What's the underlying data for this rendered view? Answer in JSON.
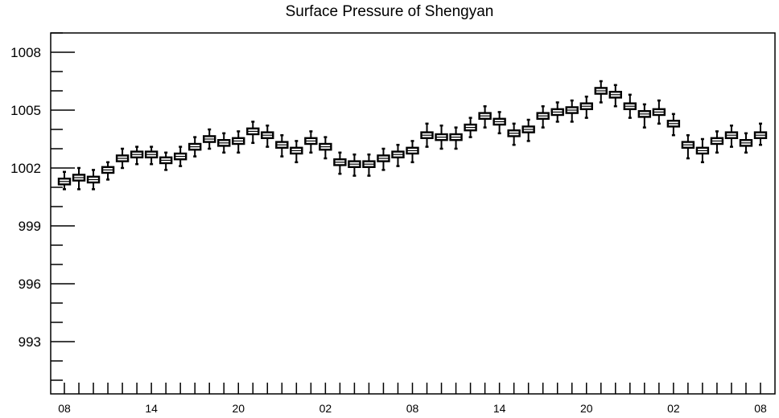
{
  "chart_data": {
    "type": "box",
    "title": "Surface Pressure of Shengyan",
    "xlabel": "",
    "ylabel": "",
    "ylim": [
      990,
      1009
    ],
    "y_ticks": [
      "993",
      "996",
      "999",
      "1002",
      "1005",
      "1008"
    ],
    "x_tick_labels": [
      "08",
      "14",
      "20",
      "02",
      "08",
      "14",
      "20",
      "02",
      "08"
    ],
    "x_label_steps": [
      0,
      6,
      12,
      18,
      24,
      30,
      36,
      42,
      48
    ],
    "boxes": [
      {
        "step": 0,
        "median": 1001.3,
        "q1": 1001.15,
        "q3": 1001.45,
        "low": 1000.9,
        "high": 1001.8
      },
      {
        "step": 1,
        "median": 1001.5,
        "q1": 1001.35,
        "q3": 1001.65,
        "low": 1000.9,
        "high": 1002.0
      },
      {
        "step": 2,
        "median": 1001.4,
        "q1": 1001.25,
        "q3": 1001.55,
        "low": 1000.9,
        "high": 1001.9
      },
      {
        "step": 3,
        "median": 1001.9,
        "q1": 1001.75,
        "q3": 1002.05,
        "low": 1001.4,
        "high": 1002.3
      },
      {
        "step": 4,
        "median": 1002.5,
        "q1": 1002.35,
        "q3": 1002.65,
        "low": 1002.0,
        "high": 1003.0
      },
      {
        "step": 5,
        "median": 1002.7,
        "q1": 1002.55,
        "q3": 1002.85,
        "low": 1002.2,
        "high": 1003.1
      },
      {
        "step": 6,
        "median": 1002.7,
        "q1": 1002.55,
        "q3": 1002.85,
        "low": 1002.2,
        "high": 1003.1
      },
      {
        "step": 7,
        "median": 1002.4,
        "q1": 1002.25,
        "q3": 1002.55,
        "low": 1001.9,
        "high": 1002.8
      },
      {
        "step": 8,
        "median": 1002.6,
        "q1": 1002.45,
        "q3": 1002.75,
        "low": 1002.1,
        "high": 1003.1
      },
      {
        "step": 9,
        "median": 1003.1,
        "q1": 1002.95,
        "q3": 1003.25,
        "low": 1002.6,
        "high": 1003.6
      },
      {
        "step": 10,
        "median": 1003.5,
        "q1": 1003.35,
        "q3": 1003.65,
        "low": 1003.0,
        "high": 1004.0
      },
      {
        "step": 11,
        "median": 1003.3,
        "q1": 1003.15,
        "q3": 1003.45,
        "low": 1002.8,
        "high": 1003.8
      },
      {
        "step": 12,
        "median": 1003.4,
        "q1": 1003.25,
        "q3": 1003.55,
        "low": 1002.8,
        "high": 1003.9
      },
      {
        "step": 13,
        "median": 1003.9,
        "q1": 1003.75,
        "q3": 1004.05,
        "low": 1003.3,
        "high": 1004.4
      },
      {
        "step": 14,
        "median": 1003.7,
        "q1": 1003.55,
        "q3": 1003.85,
        "low": 1003.1,
        "high": 1004.2
      },
      {
        "step": 15,
        "median": 1003.2,
        "q1": 1003.05,
        "q3": 1003.35,
        "low": 1002.6,
        "high": 1003.7
      },
      {
        "step": 16,
        "median": 1002.9,
        "q1": 1002.75,
        "q3": 1003.05,
        "low": 1002.3,
        "high": 1003.4
      },
      {
        "step": 17,
        "median": 1003.4,
        "q1": 1003.25,
        "q3": 1003.55,
        "low": 1002.8,
        "high": 1003.9
      },
      {
        "step": 18,
        "median": 1003.1,
        "q1": 1002.95,
        "q3": 1003.25,
        "low": 1002.5,
        "high": 1003.6
      },
      {
        "step": 19,
        "median": 1002.3,
        "q1": 1002.15,
        "q3": 1002.45,
        "low": 1001.7,
        "high": 1002.8
      },
      {
        "step": 20,
        "median": 1002.2,
        "q1": 1002.05,
        "q3": 1002.35,
        "low": 1001.6,
        "high": 1002.7
      },
      {
        "step": 21,
        "median": 1002.2,
        "q1": 1002.05,
        "q3": 1002.35,
        "low": 1001.6,
        "high": 1002.7
      },
      {
        "step": 22,
        "median": 1002.5,
        "q1": 1002.35,
        "q3": 1002.65,
        "low": 1001.9,
        "high": 1003.0
      },
      {
        "step": 23,
        "median": 1002.7,
        "q1": 1002.55,
        "q3": 1002.85,
        "low": 1002.1,
        "high": 1003.2
      },
      {
        "step": 24,
        "median": 1002.9,
        "q1": 1002.75,
        "q3": 1003.05,
        "low": 1002.3,
        "high": 1003.4
      },
      {
        "step": 25,
        "median": 1003.7,
        "q1": 1003.55,
        "q3": 1003.85,
        "low": 1003.1,
        "high": 1004.3
      },
      {
        "step": 26,
        "median": 1003.6,
        "q1": 1003.45,
        "q3": 1003.75,
        "low": 1003.0,
        "high": 1004.2
      },
      {
        "step": 27,
        "median": 1003.6,
        "q1": 1003.45,
        "q3": 1003.75,
        "low": 1003.0,
        "high": 1004.1
      },
      {
        "step": 28,
        "median": 1004.1,
        "q1": 1003.95,
        "q3": 1004.25,
        "low": 1003.6,
        "high": 1004.6
      },
      {
        "step": 29,
        "median": 1004.7,
        "q1": 1004.55,
        "q3": 1004.85,
        "low": 1004.1,
        "high": 1005.2
      },
      {
        "step": 30,
        "median": 1004.4,
        "q1": 1004.25,
        "q3": 1004.55,
        "low": 1003.8,
        "high": 1004.9
      },
      {
        "step": 31,
        "median": 1003.8,
        "q1": 1003.65,
        "q3": 1003.95,
        "low": 1003.2,
        "high": 1004.3
      },
      {
        "step": 32,
        "median": 1004.0,
        "q1": 1003.85,
        "q3": 1004.15,
        "low": 1003.4,
        "high": 1004.5
      },
      {
        "step": 33,
        "median": 1004.7,
        "q1": 1004.55,
        "q3": 1004.85,
        "low": 1004.1,
        "high": 1005.2
      },
      {
        "step": 34,
        "median": 1004.9,
        "q1": 1004.75,
        "q3": 1005.05,
        "low": 1004.4,
        "high": 1005.4
      },
      {
        "step": 35,
        "median": 1005.0,
        "q1": 1004.85,
        "q3": 1005.15,
        "low": 1004.4,
        "high": 1005.5
      },
      {
        "step": 36,
        "median": 1005.2,
        "q1": 1005.05,
        "q3": 1005.35,
        "low": 1004.6,
        "high": 1005.7
      },
      {
        "step": 37,
        "median": 1006.0,
        "q1": 1005.85,
        "q3": 1006.15,
        "low": 1005.4,
        "high": 1006.5
      },
      {
        "step": 38,
        "median": 1005.8,
        "q1": 1005.65,
        "q3": 1005.95,
        "low": 1005.2,
        "high": 1006.3
      },
      {
        "step": 39,
        "median": 1005.2,
        "q1": 1005.05,
        "q3": 1005.35,
        "low": 1004.6,
        "high": 1005.8
      },
      {
        "step": 40,
        "median": 1004.8,
        "q1": 1004.65,
        "q3": 1004.95,
        "low": 1004.1,
        "high": 1005.3
      },
      {
        "step": 41,
        "median": 1004.9,
        "q1": 1004.75,
        "q3": 1005.05,
        "low": 1004.3,
        "high": 1005.5
      },
      {
        "step": 42,
        "median": 1004.3,
        "q1": 1004.15,
        "q3": 1004.45,
        "low": 1003.7,
        "high": 1004.8
      },
      {
        "step": 43,
        "median": 1003.2,
        "q1": 1003.05,
        "q3": 1003.35,
        "low": 1002.5,
        "high": 1003.7
      },
      {
        "step": 44,
        "median": 1002.9,
        "q1": 1002.75,
        "q3": 1003.05,
        "low": 1002.3,
        "high": 1003.5
      },
      {
        "step": 45,
        "median": 1003.4,
        "q1": 1003.25,
        "q3": 1003.55,
        "low": 1002.8,
        "high": 1003.9
      },
      {
        "step": 46,
        "median": 1003.7,
        "q1": 1003.55,
        "q3": 1003.85,
        "low": 1003.1,
        "high": 1004.2
      },
      {
        "step": 47,
        "median": 1003.3,
        "q1": 1003.15,
        "q3": 1003.45,
        "low": 1002.8,
        "high": 1003.8
      },
      {
        "step": 48,
        "median": 1003.7,
        "q1": 1003.55,
        "q3": 1003.85,
        "low": 1003.2,
        "high": 1004.3
      }
    ],
    "grid": false,
    "legend": "none"
  }
}
